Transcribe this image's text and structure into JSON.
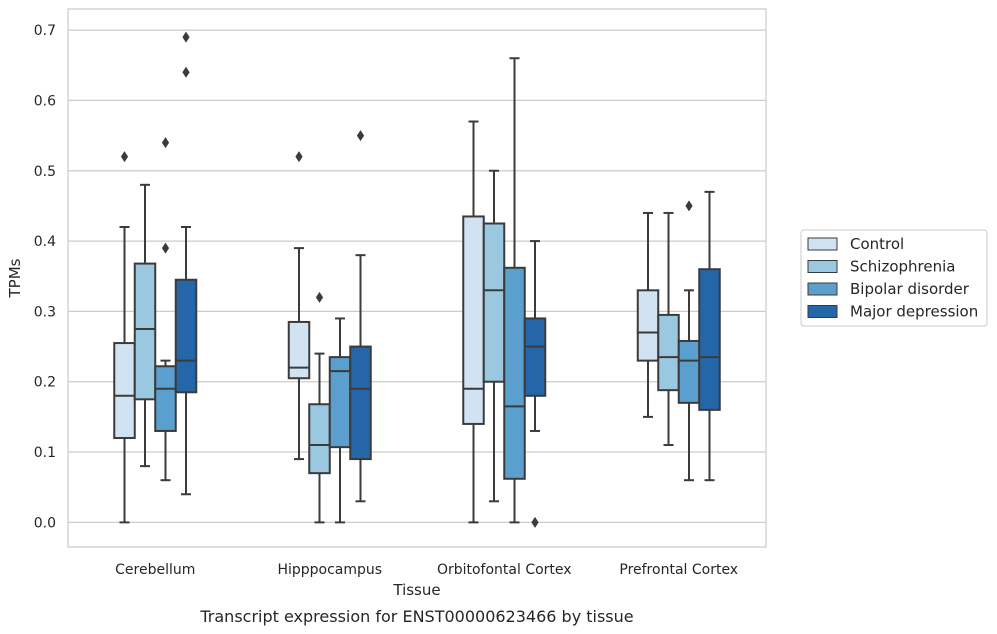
{
  "chart_data": {
    "type": "box",
    "title": "Transcript expression for ENST00000623466 by tissue",
    "xlabel": "Tissue",
    "ylabel": "TPMs",
    "ylim": [
      -0.035,
      0.73
    ],
    "yticks": [
      0.0,
      0.1,
      0.2,
      0.3,
      0.4,
      0.5,
      0.6,
      0.7
    ],
    "ytick_labels": [
      "0.0",
      "0.1",
      "0.2",
      "0.3",
      "0.4",
      "0.5",
      "0.6",
      "0.7"
    ],
    "grid": "horizontal",
    "legend_position": "right",
    "categories": [
      "Cerebellum",
      "Hipppocampus",
      "Orbitofontal Cortex",
      "Prefrontal Cortex"
    ],
    "series": [
      {
        "name": "Control",
        "color": "#d1e2f2",
        "boxes": [
          {
            "low": 0.0,
            "q1": 0.12,
            "median": 0.18,
            "q3": 0.255,
            "high": 0.42,
            "outliers": [
              0.52
            ]
          },
          {
            "low": 0.09,
            "q1": 0.205,
            "median": 0.22,
            "q3": 0.285,
            "high": 0.39,
            "outliers": [
              0.52
            ]
          },
          {
            "low": 0.0,
            "q1": 0.14,
            "median": 0.19,
            "q3": 0.435,
            "high": 0.57,
            "outliers": []
          },
          {
            "low": 0.15,
            "q1": 0.23,
            "median": 0.27,
            "q3": 0.33,
            "high": 0.44,
            "outliers": []
          }
        ]
      },
      {
        "name": "Schizophrenia",
        "color": "#9ac8e0",
        "boxes": [
          {
            "low": 0.08,
            "q1": 0.175,
            "median": 0.275,
            "q3": 0.368,
            "high": 0.48,
            "outliers": []
          },
          {
            "low": 0.0,
            "q1": 0.07,
            "median": 0.11,
            "q3": 0.168,
            "high": 0.24,
            "outliers": [
              0.32
            ]
          },
          {
            "low": 0.03,
            "q1": 0.2,
            "median": 0.33,
            "q3": 0.425,
            "high": 0.5,
            "outliers": []
          },
          {
            "low": 0.11,
            "q1": 0.188,
            "median": 0.235,
            "q3": 0.295,
            "high": 0.44,
            "outliers": []
          }
        ]
      },
      {
        "name": "Bipolar disorder",
        "color": "#5a9fcd",
        "boxes": [
          {
            "low": 0.06,
            "q1": 0.13,
            "median": 0.19,
            "q3": 0.222,
            "high": 0.23,
            "outliers": [
              0.54,
              0.39
            ]
          },
          {
            "low": 0.0,
            "q1": 0.107,
            "median": 0.215,
            "q3": 0.235,
            "high": 0.29,
            "outliers": []
          },
          {
            "low": 0.0,
            "q1": 0.062,
            "median": 0.165,
            "q3": 0.362,
            "high": 0.66,
            "outliers": []
          },
          {
            "low": 0.06,
            "q1": 0.17,
            "median": 0.23,
            "q3": 0.258,
            "high": 0.33,
            "outliers": [
              0.45
            ]
          }
        ]
      },
      {
        "name": "Major depression",
        "color": "#2566a8",
        "boxes": [
          {
            "low": 0.04,
            "q1": 0.185,
            "median": 0.23,
            "q3": 0.345,
            "high": 0.42,
            "outliers": [
              0.69,
              0.64
            ]
          },
          {
            "low": 0.03,
            "q1": 0.09,
            "median": 0.19,
            "q3": 0.25,
            "high": 0.38,
            "outliers": [
              0.55
            ]
          },
          {
            "low": 0.13,
            "q1": 0.18,
            "median": 0.25,
            "q3": 0.29,
            "high": 0.4,
            "outliers": [
              0.0
            ]
          },
          {
            "low": 0.06,
            "q1": 0.16,
            "median": 0.235,
            "q3": 0.36,
            "high": 0.47,
            "outliers": []
          }
        ]
      }
    ]
  }
}
